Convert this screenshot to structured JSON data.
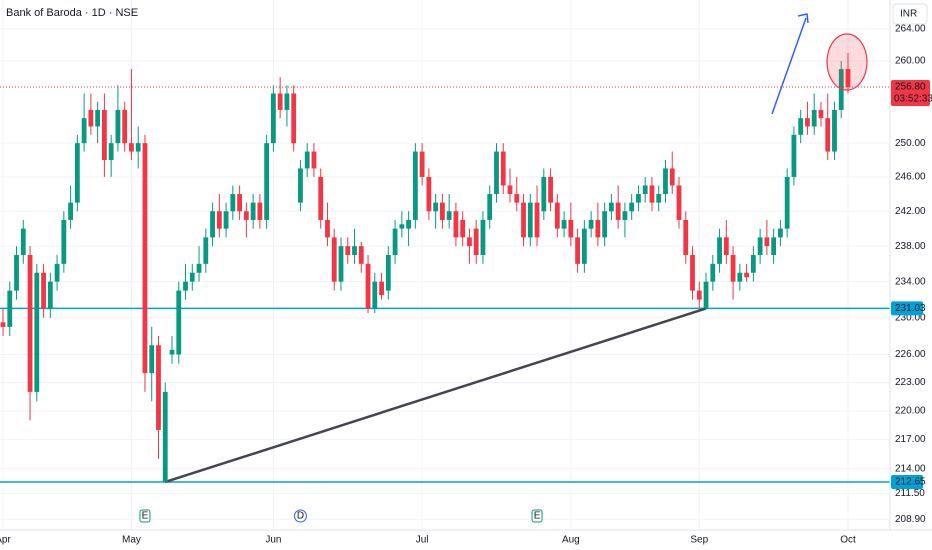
{
  "chart_data": {
    "type": "candlestick",
    "title": "Bank of Baroda · 1D · NSE",
    "currency": "INR",
    "log_scale": true,
    "grid": true,
    "up_color": "#089981",
    "down_color": "#f23645",
    "level_color": "#00a3d9",
    "ylim": [
      207.83,
      267.69
    ],
    "yticks": [
      {
        "value": 264,
        "label": "264.00"
      },
      {
        "value": 260,
        "label": "260.00"
      },
      {
        "value": 250,
        "label": "250.00"
      },
      {
        "value": 246,
        "label": "246.00"
      },
      {
        "value": 242,
        "label": "242.00"
      },
      {
        "value": 238,
        "label": "238.00"
      },
      {
        "value": 234,
        "label": "234.00"
      },
      {
        "value": 230,
        "label": "230.00"
      },
      {
        "value": 226,
        "label": "226.00"
      },
      {
        "value": 223,
        "label": "223.00"
      },
      {
        "value": 220,
        "label": "220.00"
      },
      {
        "value": 217,
        "label": "217.00"
      },
      {
        "value": 214,
        "label": "214.00"
      },
      {
        "value": 211.5,
        "label": "211.50"
      },
      {
        "value": 208.9,
        "label": "208.90"
      }
    ],
    "last_price": {
      "value": 256.8,
      "label": "256.80",
      "countdown": "03:52:33"
    },
    "levels": [
      231.03,
      212.65
    ],
    "trendline": {
      "x": [
        24,
        104
      ],
      "y": [
        212.65,
        231.03
      ]
    },
    "events": [
      {
        "index": 21,
        "label": "E",
        "color": "#089981"
      },
      {
        "index": 44,
        "label": "D",
        "color": "#2962ff"
      },
      {
        "index": 79,
        "label": "E",
        "color": "#089981"
      }
    ],
    "categories": [
      "Apr",
      null,
      null,
      null,
      null,
      null,
      null,
      null,
      null,
      null,
      null,
      null,
      null,
      null,
      null,
      null,
      null,
      null,
      null,
      "May",
      null,
      null,
      null,
      null,
      null,
      null,
      null,
      null,
      null,
      null,
      null,
      null,
      null,
      null,
      null,
      null,
      null,
      null,
      null,
      null,
      "Jun",
      null,
      null,
      null,
      null,
      null,
      null,
      null,
      null,
      null,
      null,
      null,
      null,
      null,
      null,
      null,
      null,
      null,
      null,
      null,
      null,
      null,
      "Jul",
      null,
      null,
      null,
      null,
      null,
      null,
      null,
      null,
      null,
      null,
      null,
      null,
      null,
      null,
      null,
      null,
      null,
      null,
      null,
      null,
      null,
      "Aug",
      null,
      null,
      null,
      null,
      null,
      null,
      null,
      null,
      null,
      null,
      null,
      null,
      null,
      null,
      null,
      null,
      null,
      null,
      "Sep",
      null,
      null,
      null,
      null,
      null,
      null,
      null,
      null,
      null,
      null,
      null,
      null,
      null,
      null,
      null,
      null,
      null,
      null,
      null,
      null,
      null,
      "Oct"
    ],
    "ohlc": [
      [
        229.5,
        231,
        228,
        229
      ],
      [
        229,
        234,
        228,
        233
      ],
      [
        233,
        238,
        232,
        237
      ],
      [
        237,
        241,
        236,
        240
      ],
      [
        237,
        238,
        219,
        222
      ],
      [
        222,
        236,
        221,
        235
      ],
      [
        235,
        236,
        230,
        231
      ],
      [
        231,
        235,
        230,
        234
      ],
      [
        234,
        237,
        233,
        236
      ],
      [
        236,
        242,
        235,
        241
      ],
      [
        241,
        245,
        240,
        243
      ],
      [
        243,
        251,
        242,
        250
      ],
      [
        250,
        256,
        249,
        253
      ],
      [
        254,
        256,
        251,
        252
      ],
      [
        252,
        255,
        250,
        254
      ],
      [
        254,
        256,
        246,
        248
      ],
      [
        248,
        251,
        246,
        250
      ],
      [
        250,
        257,
        249,
        254
      ],
      [
        254,
        255,
        249,
        250
      ],
      [
        250,
        259,
        248,
        249
      ],
      [
        249,
        252,
        247,
        250
      ],
      [
        250,
        251,
        222,
        224
      ],
      [
        224,
        229,
        221,
        227
      ],
      [
        227,
        228,
        215,
        218
      ],
      [
        212.65,
        223,
        212.65,
        222
      ],
      [
        226,
        228,
        225,
        226.5
      ],
      [
        226,
        234,
        225,
        233
      ],
      [
        233,
        236,
        232,
        234
      ],
      [
        234,
        236,
        233,
        235
      ],
      [
        235,
        238,
        234,
        236
      ],
      [
        236,
        240,
        235,
        239
      ],
      [
        239,
        243,
        238,
        242
      ],
      [
        242,
        244,
        239,
        240
      ],
      [
        240,
        243,
        239,
        242
      ],
      [
        242,
        245,
        241,
        244
      ],
      [
        244,
        245,
        241,
        242
      ],
      [
        242,
        243,
        239,
        241
      ],
      [
        241,
        244,
        240,
        243
      ],
      [
        243,
        244,
        240,
        241
      ],
      [
        241,
        251,
        240,
        250
      ],
      [
        250,
        257,
        249,
        256
      ],
      [
        256,
        258,
        253,
        254
      ],
      [
        254,
        257,
        252,
        256
      ],
      [
        256,
        257,
        249,
        250
      ],
      [
        243,
        248,
        242,
        247
      ],
      [
        247,
        250,
        246,
        249
      ],
      [
        249,
        250,
        246,
        247
      ],
      [
        246,
        247,
        240,
        241
      ],
      [
        241,
        243,
        238,
        239
      ],
      [
        239,
        240,
        233,
        234
      ],
      [
        234,
        239,
        233,
        238
      ],
      [
        238,
        239,
        236,
        237
      ],
      [
        237,
        240,
        236,
        238
      ],
      [
        238,
        238.5,
        235,
        236
      ],
      [
        236,
        237,
        230.5,
        231
      ],
      [
        231,
        235,
        230.5,
        234
      ],
      [
        234,
        235,
        232,
        232.5
      ],
      [
        233,
        238,
        232,
        237
      ],
      [
        237,
        241,
        236,
        240
      ],
      [
        240,
        242,
        239,
        240.5
      ],
      [
        240,
        242,
        238,
        241
      ],
      [
        241,
        250,
        240,
        249
      ],
      [
        249,
        250,
        245,
        246
      ],
      [
        246,
        247,
        241,
        242
      ],
      [
        242,
        244,
        240,
        243
      ],
      [
        243,
        244,
        240,
        241
      ],
      [
        241,
        244,
        240,
        242
      ],
      [
        242,
        243,
        238,
        239
      ],
      [
        241,
        242,
        238,
        239
      ],
      [
        239,
        240,
        236,
        238
      ],
      [
        240,
        241,
        236,
        237
      ],
      [
        237,
        242,
        236,
        241
      ],
      [
        241,
        245,
        240,
        244
      ],
      [
        244,
        250,
        243,
        249
      ],
      [
        249,
        250,
        244,
        245
      ],
      [
        245,
        247,
        243,
        244
      ],
      [
        244,
        246,
        242,
        243
      ],
      [
        243,
        244,
        238,
        239
      ],
      [
        239,
        244,
        238,
        243
      ],
      [
        243,
        245,
        238,
        239
      ],
      [
        242,
        247,
        241,
        246
      ],
      [
        246,
        247,
        242,
        243
      ],
      [
        243,
        244,
        239,
        240
      ],
      [
        240,
        242,
        239,
        241
      ],
      [
        241,
        243,
        238,
        239
      ],
      [
        239,
        240,
        235,
        236
      ],
      [
        236,
        241,
        235,
        240
      ],
      [
        240,
        242,
        239,
        241
      ],
      [
        241,
        243,
        238,
        239
      ],
      [
        239,
        243,
        238,
        242
      ],
      [
        242,
        244,
        241,
        243
      ],
      [
        243,
        245,
        240,
        241
      ],
      [
        241,
        243,
        239,
        242
      ],
      [
        242,
        244,
        241,
        243
      ],
      [
        243,
        245,
        242,
        244
      ],
      [
        244,
        246,
        243,
        245
      ],
      [
        245,
        246,
        242,
        243
      ],
      [
        243,
        245,
        242,
        244
      ],
      [
        244,
        248,
        243,
        247
      ],
      [
        247,
        249,
        244,
        245
      ],
      [
        245,
        246,
        240,
        241
      ],
      [
        241,
        242,
        236,
        237
      ],
      [
        237,
        238,
        232,
        233
      ],
      [
        233,
        234,
        231,
        232
      ],
      [
        231.03,
        235,
        231,
        234
      ],
      [
        234,
        237,
        233,
        236
      ],
      [
        236,
        240,
        235,
        239
      ],
      [
        239,
        241,
        236,
        237
      ],
      [
        237,
        238,
        232,
        234
      ],
      [
        234,
        236,
        233,
        235
      ],
      [
        235,
        236,
        234,
        234.5
      ],
      [
        235,
        238,
        234,
        237
      ],
      [
        237,
        240,
        236,
        239
      ],
      [
        239,
        241,
        237,
        238
      ],
      [
        237,
        240,
        236,
        239
      ],
      [
        239,
        241,
        238,
        240
      ],
      [
        240,
        247,
        239,
        246
      ],
      [
        246,
        252,
        245,
        251
      ],
      [
        251,
        254,
        250,
        253
      ],
      [
        253,
        255,
        251,
        252
      ],
      [
        252,
        256,
        251,
        254
      ],
      [
        254,
        255,
        252,
        253
      ],
      [
        253,
        256,
        248,
        249
      ],
      [
        249,
        255,
        248,
        254
      ],
      [
        254,
        260,
        253,
        259
      ],
      [
        259,
        261,
        256,
        256.8
      ]
    ]
  }
}
